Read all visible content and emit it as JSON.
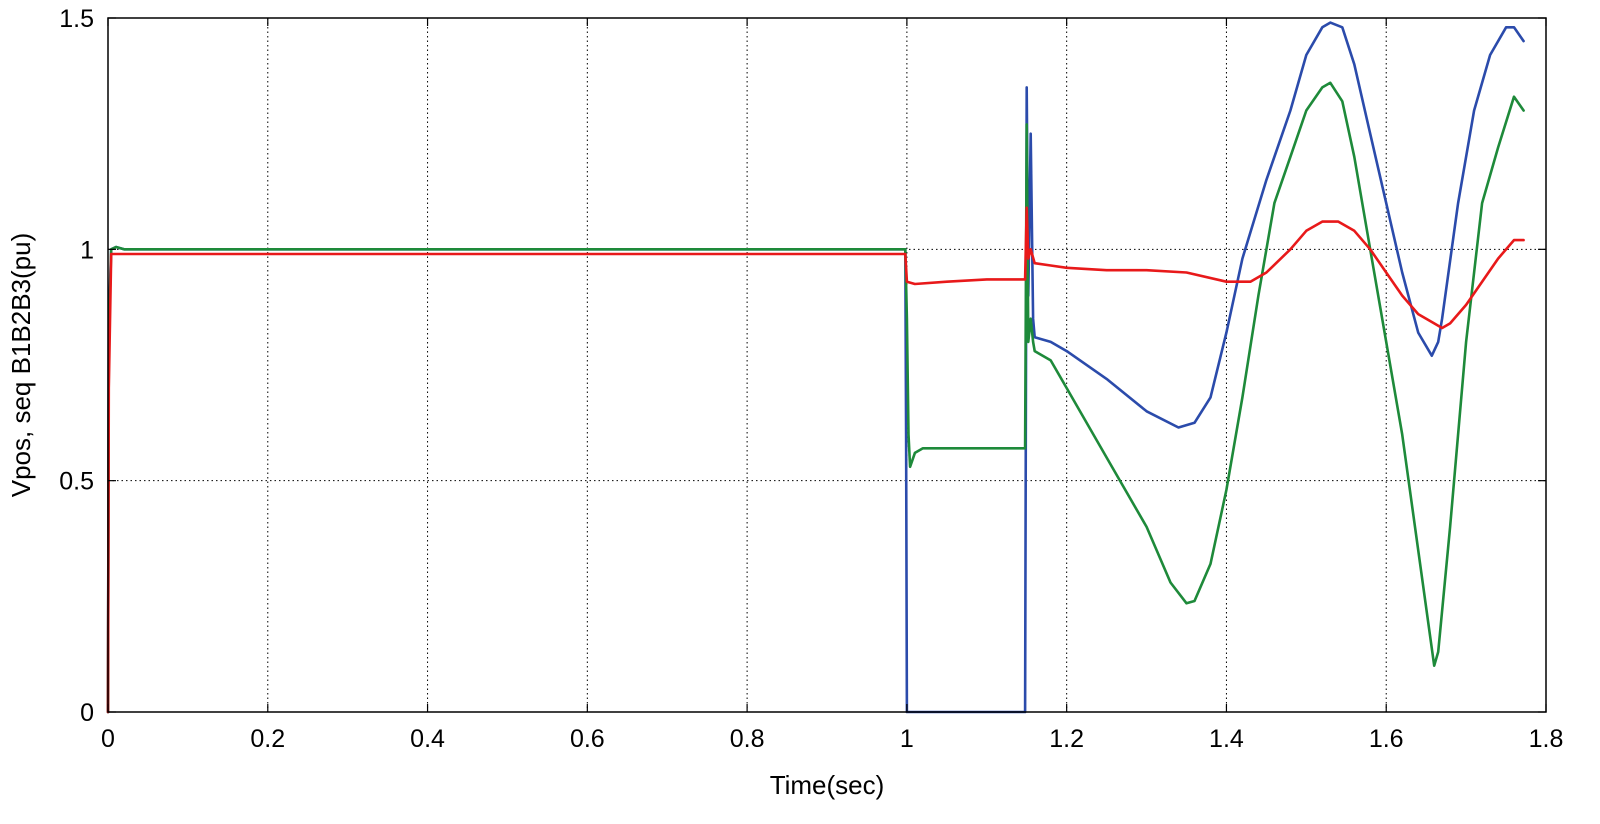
{
  "chart_data": {
    "type": "line",
    "title": "",
    "xlabel": "Time(sec)",
    "ylabel": "Vpos, seq B1B2B3(pu)",
    "xlim": [
      0,
      1.8
    ],
    "ylim": [
      0,
      1.5
    ],
    "xticks": [
      0,
      0.2,
      0.4,
      0.6,
      0.8,
      1,
      1.2,
      1.4,
      1.6,
      1.8
    ],
    "xtick_labels": [
      "0",
      "0.2",
      "0.4",
      "0.6",
      "0.8",
      "1",
      "1.2",
      "1.4",
      "1.6",
      "1.8"
    ],
    "yticks": [
      0,
      0.5,
      1,
      1.5
    ],
    "ytick_labels": [
      "0",
      "0.5",
      "1",
      "1.5"
    ],
    "grid": true,
    "legend": "none",
    "series": [
      {
        "color": "#2b4bab",
        "points": [
          [
            0,
            0
          ],
          [
            0.001,
            0.85
          ],
          [
            0.004,
            1.0
          ],
          [
            0.01,
            1.005
          ],
          [
            0.02,
            1.0
          ],
          [
            0.3,
            1.0
          ],
          [
            0.6,
            1.0
          ],
          [
            0.9,
            1.0
          ],
          [
            0.998,
            1.0
          ],
          [
            0.999,
            0.6
          ],
          [
            1.0,
            0.0
          ],
          [
            1.05,
            0.0
          ],
          [
            1.1,
            0.0
          ],
          [
            1.148,
            0.0
          ],
          [
            1.15,
            1.35
          ],
          [
            1.152,
            0.9
          ],
          [
            1.155,
            1.25
          ],
          [
            1.158,
            0.85
          ],
          [
            1.16,
            0.81
          ],
          [
            1.18,
            0.8
          ],
          [
            1.2,
            0.78
          ],
          [
            1.25,
            0.72
          ],
          [
            1.3,
            0.65
          ],
          [
            1.34,
            0.615
          ],
          [
            1.36,
            0.625
          ],
          [
            1.38,
            0.68
          ],
          [
            1.4,
            0.82
          ],
          [
            1.42,
            0.98
          ],
          [
            1.45,
            1.15
          ],
          [
            1.48,
            1.3
          ],
          [
            1.5,
            1.42
          ],
          [
            1.52,
            1.48
          ],
          [
            1.53,
            1.49
          ],
          [
            1.545,
            1.48
          ],
          [
            1.56,
            1.4
          ],
          [
            1.58,
            1.25
          ],
          [
            1.6,
            1.1
          ],
          [
            1.62,
            0.95
          ],
          [
            1.64,
            0.82
          ],
          [
            1.657,
            0.77
          ],
          [
            1.665,
            0.8
          ],
          [
            1.67,
            0.85
          ],
          [
            1.69,
            1.1
          ],
          [
            1.71,
            1.3
          ],
          [
            1.73,
            1.42
          ],
          [
            1.75,
            1.48
          ],
          [
            1.76,
            1.48
          ],
          [
            1.772,
            1.45
          ]
        ]
      },
      {
        "color": "#1e8a3a",
        "points": [
          [
            0,
            0
          ],
          [
            0.001,
            0.8
          ],
          [
            0.004,
            1.0
          ],
          [
            0.01,
            1.005
          ],
          [
            0.02,
            1.0
          ],
          [
            0.3,
            1.0
          ],
          [
            0.6,
            1.0
          ],
          [
            0.9,
            1.0
          ],
          [
            0.998,
            1.0
          ],
          [
            1.0,
            0.85
          ],
          [
            1.002,
            0.6
          ],
          [
            1.004,
            0.53
          ],
          [
            1.01,
            0.56
          ],
          [
            1.02,
            0.57
          ],
          [
            1.05,
            0.57
          ],
          [
            1.1,
            0.57
          ],
          [
            1.148,
            0.57
          ],
          [
            1.15,
            1.27
          ],
          [
            1.152,
            0.8
          ],
          [
            1.155,
            0.85
          ],
          [
            1.158,
            0.8
          ],
          [
            1.16,
            0.78
          ],
          [
            1.18,
            0.76
          ],
          [
            1.2,
            0.7
          ],
          [
            1.25,
            0.55
          ],
          [
            1.3,
            0.4
          ],
          [
            1.33,
            0.28
          ],
          [
            1.35,
            0.235
          ],
          [
            1.36,
            0.24
          ],
          [
            1.38,
            0.32
          ],
          [
            1.4,
            0.48
          ],
          [
            1.42,
            0.68
          ],
          [
            1.44,
            0.9
          ],
          [
            1.46,
            1.1
          ],
          [
            1.48,
            1.2
          ],
          [
            1.5,
            1.3
          ],
          [
            1.52,
            1.35
          ],
          [
            1.53,
            1.36
          ],
          [
            1.545,
            1.32
          ],
          [
            1.56,
            1.2
          ],
          [
            1.58,
            1.0
          ],
          [
            1.6,
            0.8
          ],
          [
            1.62,
            0.6
          ],
          [
            1.64,
            0.35
          ],
          [
            1.66,
            0.1
          ],
          [
            1.665,
            0.13
          ],
          [
            1.68,
            0.4
          ],
          [
            1.7,
            0.8
          ],
          [
            1.72,
            1.1
          ],
          [
            1.74,
            1.22
          ],
          [
            1.76,
            1.33
          ],
          [
            1.772,
            1.3
          ]
        ]
      },
      {
        "color": "#e8191a",
        "points": [
          [
            0,
            0
          ],
          [
            0.001,
            0.7
          ],
          [
            0.004,
            0.99
          ],
          [
            0.05,
            0.99
          ],
          [
            0.3,
            0.99
          ],
          [
            0.6,
            0.99
          ],
          [
            0.9,
            0.99
          ],
          [
            0.998,
            0.99
          ],
          [
            1.0,
            0.93
          ],
          [
            1.01,
            0.925
          ],
          [
            1.05,
            0.93
          ],
          [
            1.1,
            0.935
          ],
          [
            1.148,
            0.935
          ],
          [
            1.15,
            1.09
          ],
          [
            1.152,
            0.98
          ],
          [
            1.155,
            1.0
          ],
          [
            1.16,
            0.97
          ],
          [
            1.18,
            0.965
          ],
          [
            1.2,
            0.96
          ],
          [
            1.25,
            0.955
          ],
          [
            1.3,
            0.955
          ],
          [
            1.35,
            0.95
          ],
          [
            1.4,
            0.93
          ],
          [
            1.43,
            0.93
          ],
          [
            1.45,
            0.95
          ],
          [
            1.48,
            1.0
          ],
          [
            1.5,
            1.04
          ],
          [
            1.52,
            1.06
          ],
          [
            1.54,
            1.06
          ],
          [
            1.56,
            1.04
          ],
          [
            1.58,
            1.0
          ],
          [
            1.6,
            0.95
          ],
          [
            1.62,
            0.9
          ],
          [
            1.64,
            0.86
          ],
          [
            1.66,
            0.84
          ],
          [
            1.67,
            0.83
          ],
          [
            1.68,
            0.84
          ],
          [
            1.7,
            0.88
          ],
          [
            1.72,
            0.93
          ],
          [
            1.74,
            0.98
          ],
          [
            1.76,
            1.02
          ],
          [
            1.772,
            1.02
          ]
        ]
      }
    ]
  }
}
